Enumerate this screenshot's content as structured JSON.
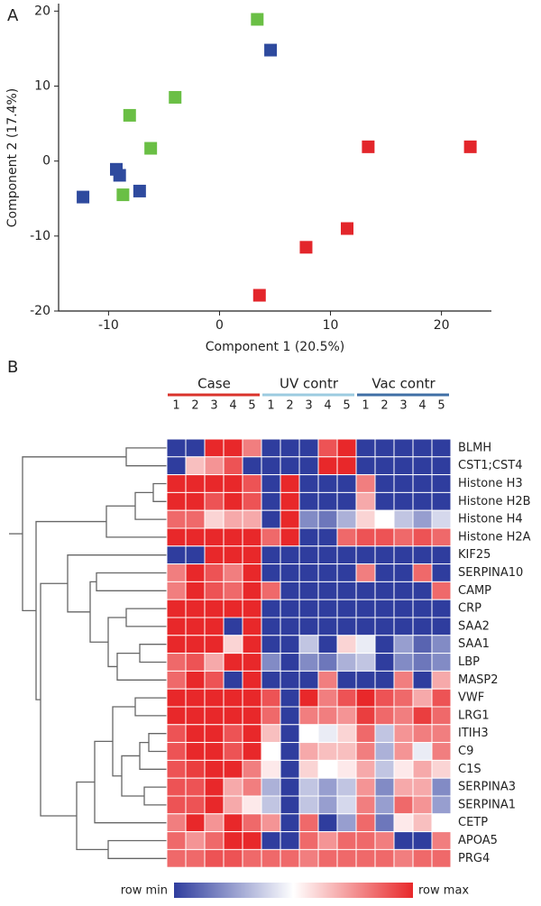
{
  "panel_labels": [
    "A",
    "B"
  ],
  "chart_data": [
    {
      "type": "scatter",
      "x_label": "Component 1 (20.5%)",
      "y_label": "Component 2 (17.4%)",
      "xlim": [
        -14.5,
        24.5
      ],
      "xticks": [
        -10,
        0,
        10,
        20
      ],
      "ylim": [
        -20,
        21
      ],
      "yticks": [
        20,
        10,
        0,
        -10,
        -20
      ],
      "series": [
        {
          "color": "#6abf45",
          "x": [
            3.4,
            -4.0,
            -8.1,
            -6.2,
            -8.7
          ],
          "values": [
            18.9,
            8.5,
            6.1,
            1.7,
            -4.5
          ]
        },
        {
          "color": "#2e4a9e",
          "x": [
            4.6,
            -9.3,
            -9.0,
            -12.3,
            -7.2
          ],
          "values": [
            14.8,
            -1.1,
            -1.9,
            -4.8,
            -4.0
          ]
        },
        {
          "color": "#e3262b",
          "x": [
            13.4,
            22.6,
            11.5,
            7.8,
            3.6
          ],
          "values": [
            1.9,
            1.9,
            -9.0,
            -11.5,
            -17.9
          ]
        }
      ]
    },
    {
      "type": "heatmap",
      "groups": [
        {
          "name": "Case",
          "color": "#d9332b"
        },
        {
          "name": "UV contr",
          "color": "#9ccbe0"
        },
        {
          "name": "Vac contr",
          "color": "#3f6fa5"
        }
      ],
      "columns": [
        1,
        2,
        3,
        4,
        5,
        1,
        2,
        3,
        4,
        5,
        1,
        2,
        3,
        4,
        5
      ],
      "rows": [
        "BLMH",
        "CST1;CST4",
        "Histone H3",
        "Histone H2B",
        "Histone H4",
        "Histone H2A",
        "KIF25",
        "SERPINA10",
        "CAMP",
        "CRP",
        "SAA2",
        "SAA1",
        "LBP",
        "MASP2",
        "VWF",
        "LRG1",
        "ITIH3",
        "C9",
        "C1S",
        "SERPINA3",
        "SERPINA1",
        "CETP",
        "APOA5",
        "PRG4"
      ],
      "values": [
        [
          0,
          0,
          1,
          1,
          0.8,
          0,
          0,
          0,
          0.9,
          1,
          0,
          0,
          0,
          0,
          0
        ],
        [
          0,
          0.65,
          0.75,
          0.9,
          0,
          0,
          0,
          0,
          1,
          1,
          0,
          0,
          0,
          0,
          0
        ],
        [
          1,
          1,
          1,
          1,
          0.9,
          0,
          1,
          0,
          0,
          0,
          0.8,
          0,
          0,
          0,
          0
        ],
        [
          1,
          1,
          0.9,
          1,
          0.9,
          0,
          1,
          0,
          0,
          0,
          0.7,
          0,
          0,
          0,
          0
        ],
        [
          0.85,
          0.85,
          0.6,
          0.7,
          0.7,
          0,
          1,
          0.2,
          0.15,
          0.3,
          0.6,
          0.5,
          0.35,
          0.25,
          0.4
        ],
        [
          1,
          1,
          1,
          1,
          1,
          0.85,
          1,
          0,
          0,
          0.85,
          0.9,
          0.9,
          0.85,
          0.9,
          0.85
        ],
        [
          0,
          0,
          1,
          1,
          1,
          0,
          0,
          0,
          0,
          0,
          0,
          0,
          0,
          0,
          0
        ],
        [
          0.8,
          1,
          0.9,
          0.8,
          1,
          0,
          0,
          0,
          0,
          0,
          0.8,
          0,
          0,
          0.85,
          0
        ],
        [
          0.8,
          1,
          0.9,
          0.85,
          1,
          0.85,
          0,
          0,
          0,
          0,
          0,
          0,
          0,
          0,
          0.85
        ],
        [
          1,
          1,
          1,
          1,
          1,
          0,
          0,
          0,
          0,
          0,
          0,
          0,
          0,
          0,
          0
        ],
        [
          1,
          1,
          1,
          0,
          1,
          0,
          0,
          0,
          0,
          0,
          0,
          0,
          0,
          0,
          0
        ],
        [
          1,
          1,
          1,
          0.6,
          1,
          0,
          0,
          0.35,
          0,
          0.6,
          0.45,
          0,
          0.25,
          0.1,
          0.2
        ],
        [
          0.85,
          0.9,
          0.7,
          1,
          1,
          0.2,
          0,
          0.2,
          0.15,
          0.3,
          0.35,
          0,
          0.2,
          0.15,
          0.2
        ],
        [
          0.85,
          1,
          0.9,
          0,
          1,
          0,
          0,
          0,
          0.8,
          0,
          0,
          0,
          0.8,
          0,
          0.7
        ],
        [
          1,
          1,
          1,
          1,
          1,
          0.9,
          0,
          1,
          0.8,
          0.9,
          1,
          0.9,
          0.85,
          0.7,
          0.9
        ],
        [
          1,
          1,
          1,
          1,
          1,
          0.85,
          0,
          0.8,
          0.8,
          0.75,
          0.95,
          0.85,
          0.8,
          0.95,
          0.85
        ],
        [
          0.9,
          1,
          1,
          0.9,
          1,
          0.65,
          0,
          0.5,
          0.45,
          0.6,
          0.85,
          0.35,
          0.75,
          0.8,
          0.8
        ],
        [
          0.9,
          1,
          1,
          0.9,
          1,
          0.5,
          0,
          0.7,
          0.65,
          0.65,
          0.8,
          0.3,
          0.75,
          0.45,
          0.8
        ],
        [
          0.9,
          0.95,
          1,
          1,
          0.8,
          0.55,
          0,
          0.6,
          0.5,
          0.55,
          0.7,
          0.35,
          0.55,
          0.7,
          0.6
        ],
        [
          0.9,
          0.9,
          1,
          0.7,
          0.8,
          0.3,
          0,
          0.35,
          0.25,
          0.35,
          0.75,
          0.2,
          0.7,
          0.7,
          0.2
        ],
        [
          0.9,
          0.9,
          1,
          0.7,
          0.55,
          0.35,
          0,
          0.35,
          0.25,
          0.4,
          0.8,
          0.25,
          0.85,
          0.75,
          0.25
        ],
        [
          0.8,
          1,
          0.75,
          1,
          0.85,
          0.75,
          0,
          0.85,
          0,
          0.25,
          0.85,
          0.15,
          0.55,
          0.65,
          0.5
        ],
        [
          0.85,
          0.75,
          0.85,
          1,
          1,
          0,
          0,
          0.85,
          0.75,
          0.85,
          0.85,
          0.8,
          0,
          0,
          0.8
        ],
        [
          0.85,
          0.85,
          0.9,
          0.9,
          0.85,
          0.85,
          0.85,
          0.8,
          0.85,
          0.85,
          0.85,
          0.85,
          0.8,
          0.85,
          0.85
        ]
      ],
      "colorbar": {
        "min_label": "row min",
        "max_label": "row max",
        "colors": [
          "#2f3d9e",
          "#ffffff",
          "#e8282a"
        ]
      }
    }
  ]
}
